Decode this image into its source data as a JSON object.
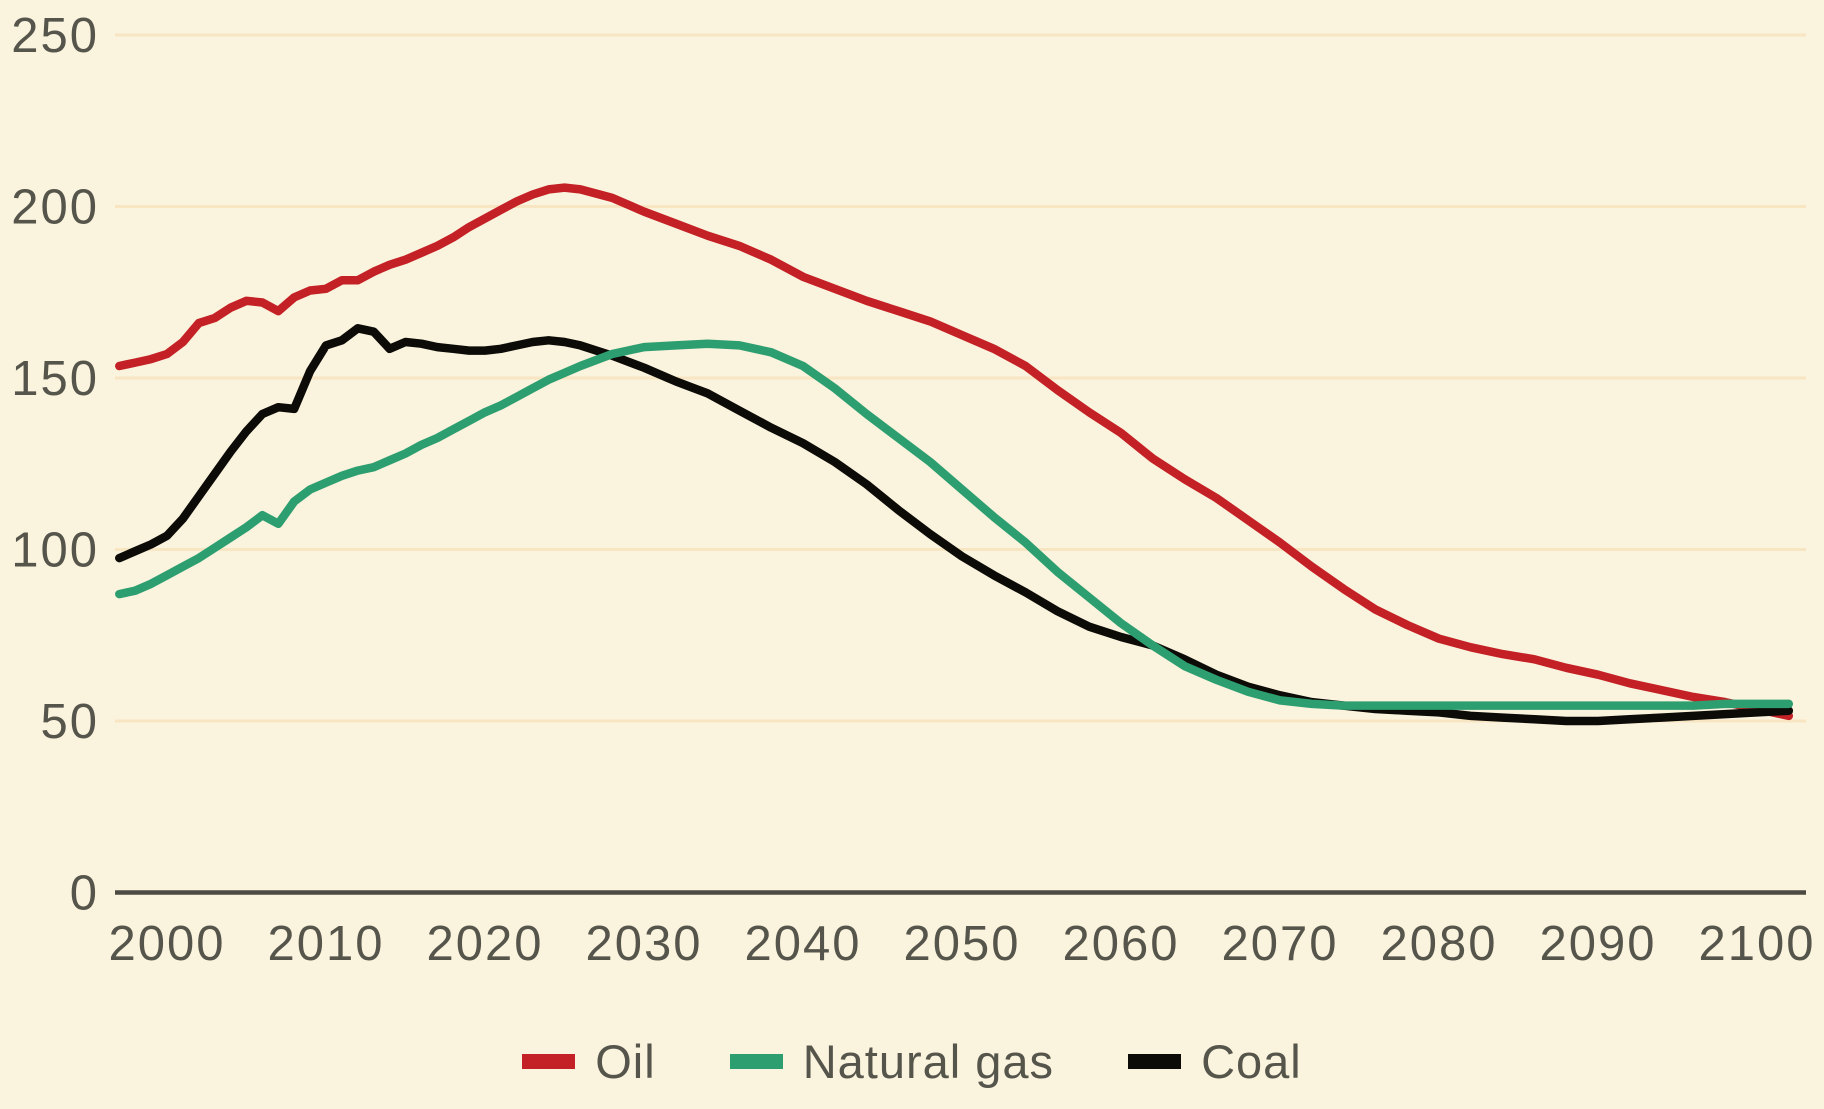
{
  "page": {
    "background_color": "#faf3dd",
    "gridline_color": "#f8e6c2",
    "axis_color": "#4c4b43",
    "text_color": "#56554c"
  },
  "chart_data": {
    "type": "line",
    "title": "",
    "xlabel": "",
    "ylabel": "",
    "xlim": [
      1997,
      2102
    ],
    "ylim": [
      0,
      250
    ],
    "x_ticks": [
      2000,
      2010,
      2020,
      2030,
      2040,
      2050,
      2060,
      2070,
      2080,
      2090,
      2100
    ],
    "y_ticks": [
      0,
      50,
      100,
      150,
      200,
      250
    ],
    "grid": "horizontal",
    "legend_position": "bottom",
    "years": [
      1997,
      1998,
      1999,
      2000,
      2001,
      2002,
      2003,
      2004,
      2005,
      2006,
      2007,
      2008,
      2009,
      2010,
      2011,
      2012,
      2013,
      2014,
      2015,
      2016,
      2017,
      2018,
      2019,
      2020,
      2021,
      2022,
      2023,
      2024,
      2025,
      2026,
      2028,
      2030,
      2032,
      2034,
      2036,
      2038,
      2040,
      2042,
      2044,
      2046,
      2048,
      2050,
      2052,
      2054,
      2056,
      2058,
      2060,
      2062,
      2064,
      2066,
      2068,
      2070,
      2072,
      2074,
      2076,
      2078,
      2080,
      2082,
      2084,
      2086,
      2088,
      2090,
      2092,
      2094,
      2096,
      2098,
      2100,
      2102
    ],
    "series": [
      {
        "name": "Oil",
        "color": "#c42127",
        "values": [
          153.5,
          154.5,
          155.5,
          157,
          160.5,
          166,
          167.5,
          170.5,
          172.5,
          172,
          169.5,
          173.5,
          175.5,
          176,
          178.5,
          178.5,
          181,
          183,
          184.5,
          186.5,
          188.5,
          191,
          194,
          196.5,
          199,
          201.5,
          203.5,
          205,
          205.5,
          205,
          202.5,
          198.5,
          195,
          191.5,
          188.5,
          184.5,
          179.5,
          176,
          172.5,
          169.5,
          166.5,
          162.5,
          158.5,
          153.5,
          146.5,
          140,
          134,
          126.5,
          120.5,
          115,
          108.5,
          102,
          95,
          88.5,
          82.5,
          78,
          74,
          71.5,
          69.5,
          68,
          65.5,
          63.5,
          61,
          59,
          57,
          55.5,
          53.5,
          51.5
        ]
      },
      {
        "name": "Natural gas",
        "color": "#2d9e70",
        "values": [
          87,
          88,
          90,
          92.5,
          95,
          97.5,
          100.5,
          103.5,
          106.5,
          110,
          107.5,
          114,
          117.5,
          119.5,
          121.5,
          123,
          124,
          126,
          128,
          130.5,
          132.5,
          135,
          137.5,
          140,
          142,
          144.5,
          147,
          149.5,
          151.5,
          153.5,
          157,
          159,
          159.5,
          160,
          159.5,
          157.5,
          153.5,
          147,
          139.5,
          132.5,
          125.5,
          117.5,
          109.5,
          102,
          93.5,
          86,
          78.5,
          72,
          66,
          62,
          58.5,
          56,
          55,
          54.5,
          54.5,
          54.5,
          54.5,
          54.5,
          54.5,
          54.5,
          54.5,
          54.5,
          54.5,
          54.5,
          54.5,
          55,
          55,
          55
        ]
      },
      {
        "name": "Coal",
        "color": "#0c0b07",
        "values": [
          97.5,
          99.5,
          101.5,
          104,
          109,
          115.5,
          122,
          128.5,
          134.5,
          139.5,
          141.5,
          141,
          152,
          159.5,
          161,
          164.5,
          163.5,
          158.5,
          160.5,
          160,
          159,
          158.5,
          158,
          158,
          158.5,
          159.5,
          160.5,
          161,
          160.5,
          159.5,
          156.5,
          153,
          149,
          145.5,
          140.5,
          135.5,
          131,
          125.5,
          119,
          111.5,
          104.5,
          98,
          92.5,
          87.5,
          82,
          77.5,
          74.5,
          72,
          68,
          63.5,
          60,
          57.5,
          55.5,
          54.5,
          53.5,
          53,
          52.5,
          51.5,
          51,
          50.5,
          50,
          50,
          50.5,
          51,
          51.5,
          52,
          52.5,
          53
        ]
      }
    ]
  }
}
